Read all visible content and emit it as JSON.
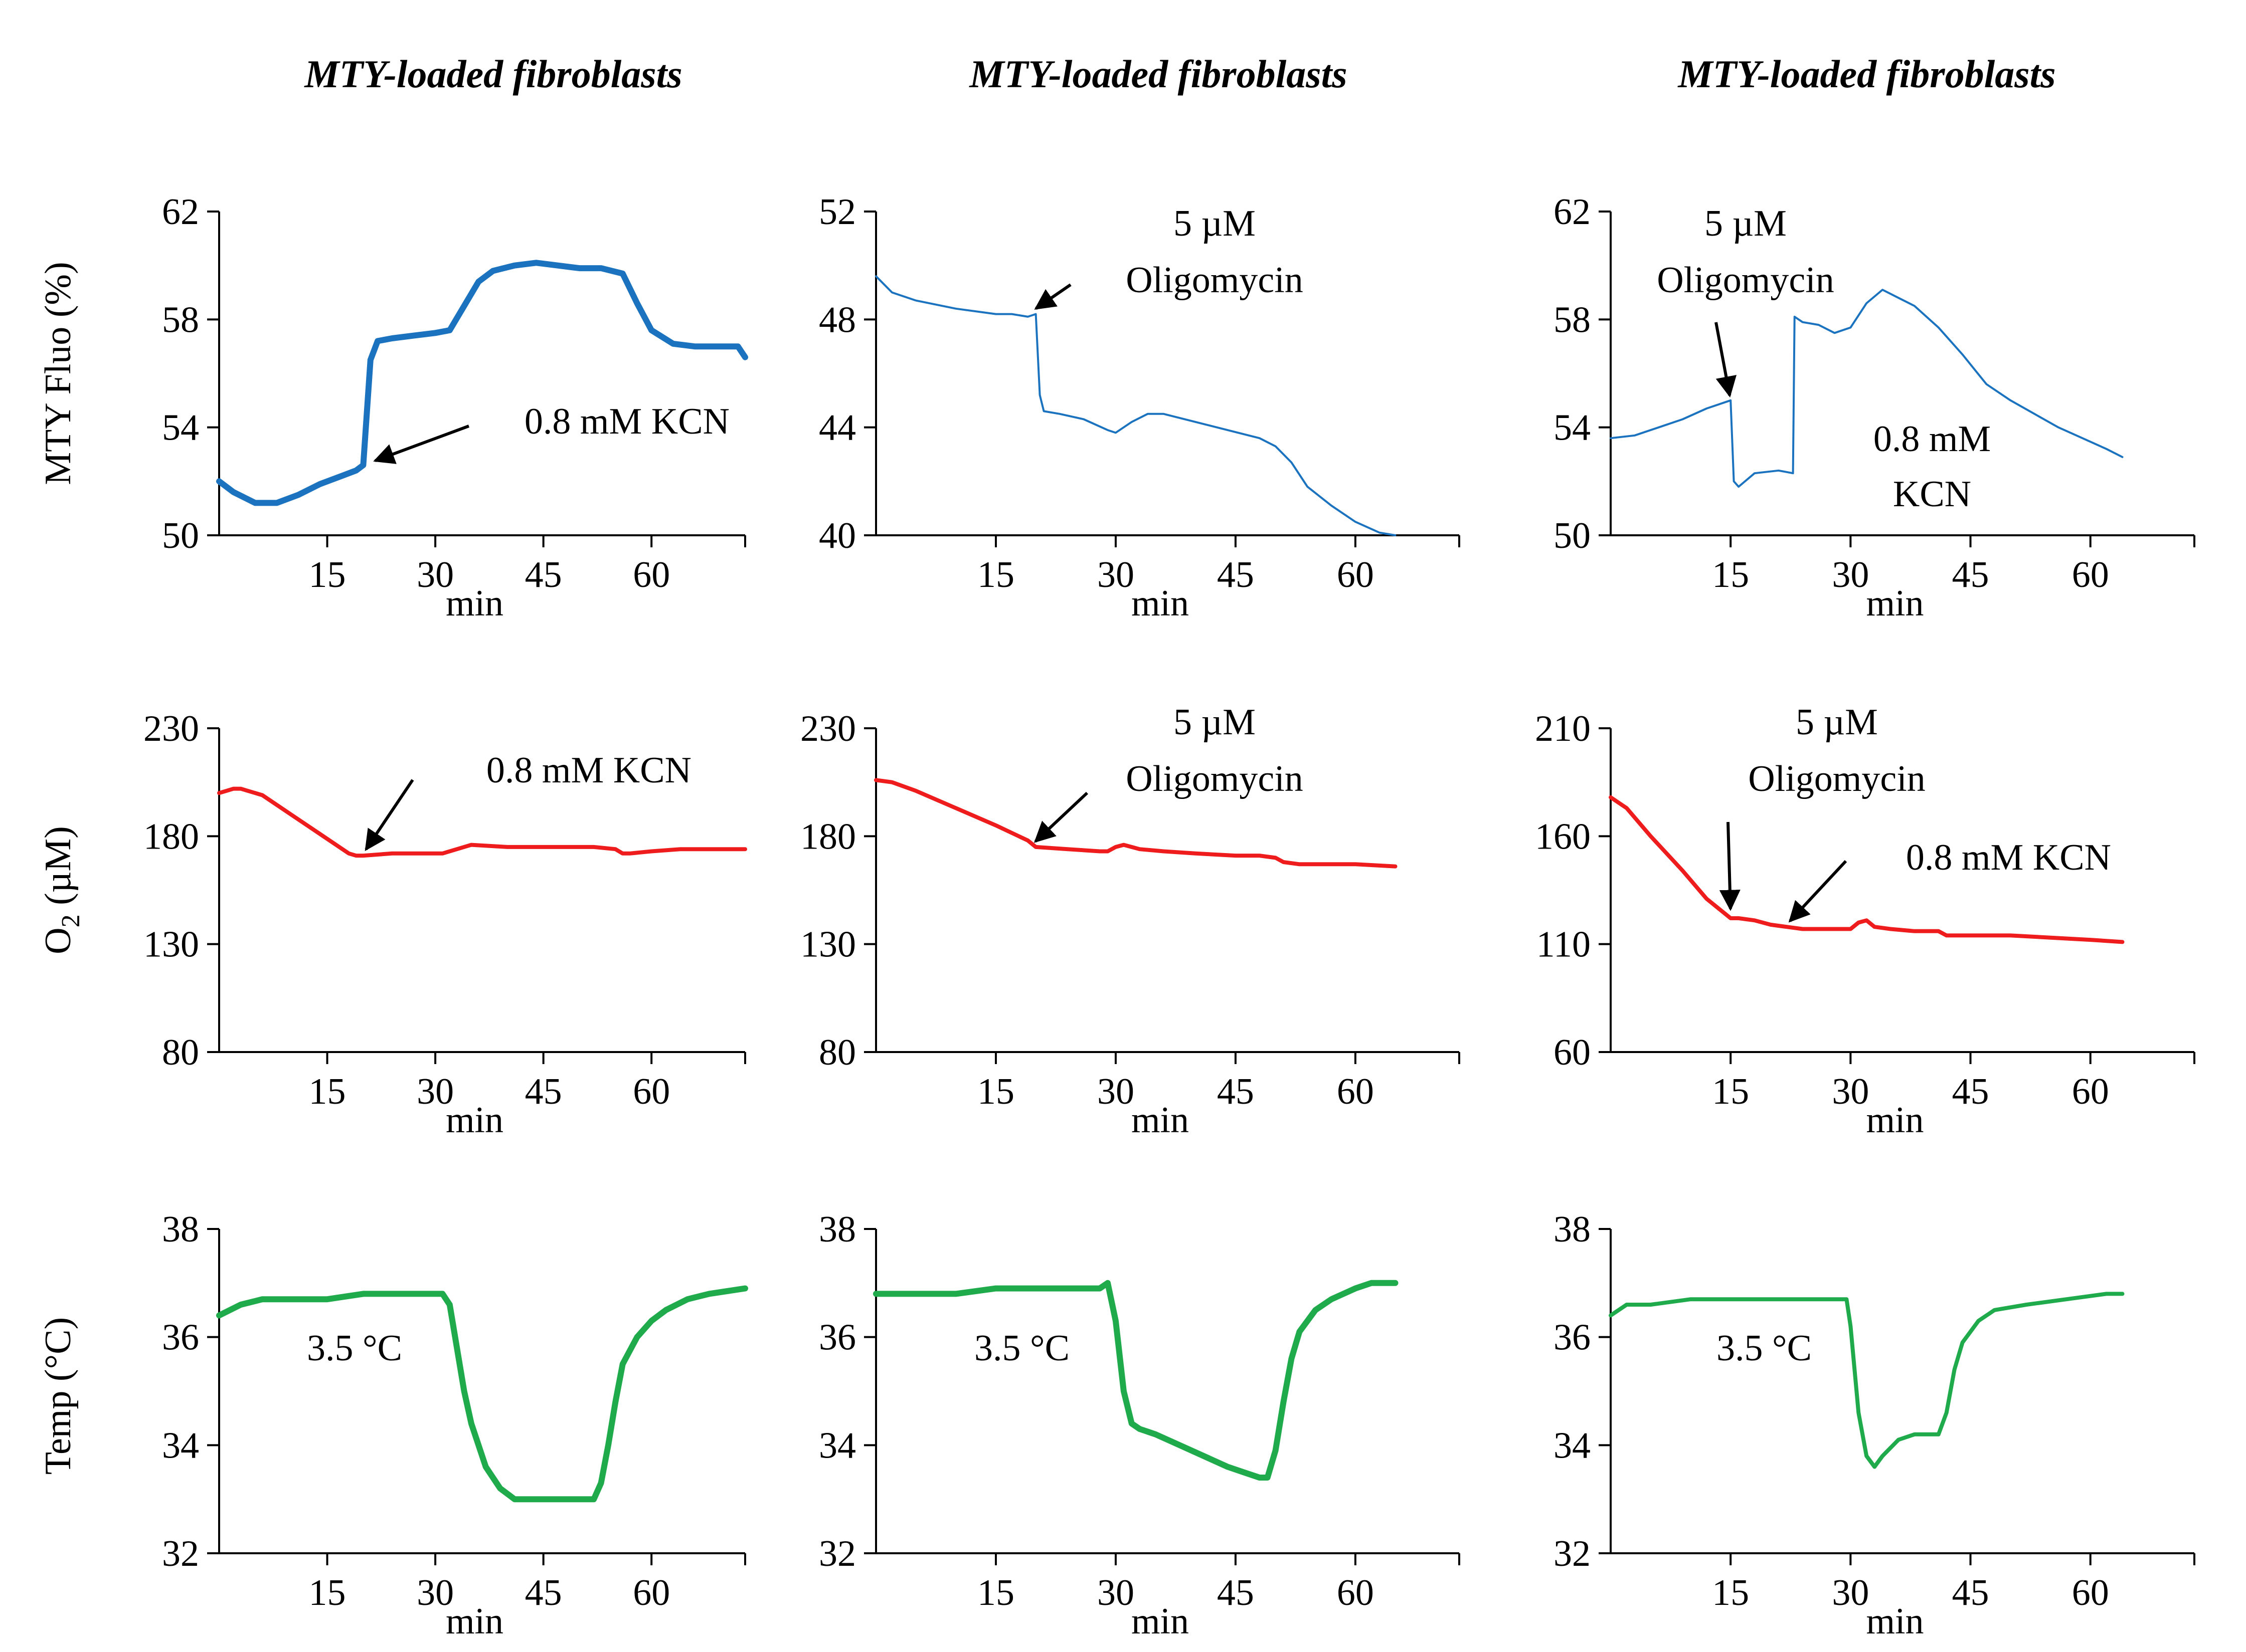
{
  "column_titles": [
    "MTY-loaded fibroblasts",
    "MTY-loaded fibroblasts",
    "MTY-loaded fibroblasts"
  ],
  "row_ylabels": {
    "fluo": "MTY Fluo (%)",
    "o2_prefix": "O",
    "o2_sub": "2",
    "o2_suffix": " (µM)",
    "temp": "Temp (°C)"
  },
  "colors": {
    "fluo": "#1B72BE",
    "o2": "#EE1C1C",
    "temp": "#1FAA4B"
  },
  "chart_data": [
    {
      "id": "c1r1",
      "row": 0,
      "col": 0,
      "type": "line",
      "series_color": "fluo",
      "line_weight": "thick",
      "xlabel": "min",
      "xticks": [
        15,
        30,
        45,
        60
      ],
      "xlim": [
        0,
        73
      ],
      "ylabel": "MTY Fluo (%)",
      "yticks": [
        50,
        54,
        58,
        62
      ],
      "ylim": [
        50,
        62
      ],
      "x": [
        0,
        2,
        5,
        8,
        11,
        14,
        17,
        19,
        20,
        21,
        22,
        24,
        27,
        30,
        32,
        34,
        36,
        38,
        41,
        44,
        47,
        50,
        53,
        56,
        58,
        60,
        63,
        66,
        69,
        72,
        73
      ],
      "y": [
        52.0,
        51.6,
        51.2,
        51.2,
        51.5,
        51.9,
        52.2,
        52.4,
        52.6,
        56.5,
        57.2,
        57.3,
        57.4,
        57.5,
        57.6,
        58.5,
        59.4,
        59.8,
        60.0,
        60.1,
        60.0,
        59.9,
        59.9,
        59.7,
        58.6,
        57.6,
        57.1,
        57.0,
        57.0,
        57.0,
        56.6
      ],
      "annotations": [
        {
          "text": "0.8 mM KCN",
          "points_to": [
            21,
            52.7
          ]
        }
      ]
    },
    {
      "id": "c2r1",
      "row": 0,
      "col": 1,
      "type": "line",
      "series_color": "fluo",
      "line_weight": "thin",
      "xlabel": "min",
      "xticks": [
        15,
        30,
        45,
        60
      ],
      "xlim": [
        0,
        73
      ],
      "yticks": [
        40,
        44,
        48,
        52
      ],
      "ylim": [
        40,
        52
      ],
      "x": [
        0,
        2,
        5,
        10,
        15,
        17,
        19,
        20,
        20.5,
        21,
        23,
        26,
        29,
        30,
        32,
        34,
        36,
        40,
        44,
        48,
        50,
        52,
        54,
        57,
        60,
        63,
        65
      ],
      "y": [
        49.6,
        49.0,
        48.7,
        48.4,
        48.2,
        48.2,
        48.1,
        48.2,
        45.2,
        44.6,
        44.5,
        44.3,
        43.9,
        43.8,
        44.2,
        44.5,
        44.5,
        44.2,
        43.9,
        43.6,
        43.3,
        42.7,
        41.8,
        41.1,
        40.5,
        40.1,
        40.0
      ],
      "annotations": [
        {
          "text": "5 µM",
          "text2": "Oligomycin",
          "points_to": [
            19.5,
            48.3
          ]
        }
      ]
    },
    {
      "id": "c3r1",
      "row": 0,
      "col": 2,
      "type": "line",
      "series_color": "fluo",
      "line_weight": "thin",
      "xlabel": "min",
      "xticks": [
        15,
        30,
        45,
        60
      ],
      "xlim": [
        0,
        73
      ],
      "yticks": [
        50,
        54,
        58,
        62
      ],
      "ylim": [
        50,
        62
      ],
      "x": [
        0,
        3,
        6,
        9,
        12,
        14,
        15,
        15.4,
        16,
        18,
        21,
        22.8,
        23,
        24,
        26,
        28,
        30,
        32,
        34,
        36,
        38,
        41,
        44,
        47,
        50,
        53,
        56,
        59,
        62,
        64
      ],
      "y": [
        53.6,
        53.7,
        54.0,
        54.3,
        54.7,
        54.9,
        55.0,
        52.0,
        51.8,
        52.3,
        52.4,
        52.3,
        58.1,
        57.9,
        57.8,
        57.5,
        57.7,
        58.6,
        59.1,
        58.8,
        58.5,
        57.7,
        56.7,
        55.6,
        55.0,
        54.5,
        54.0,
        53.6,
        53.2,
        52.9
      ],
      "annotations": [
        {
          "text": "5 µM",
          "text2": "Oligomycin",
          "points_to": [
            15,
            55.0
          ]
        },
        {
          "text": "0.8 mM",
          "text2": "KCN"
        }
      ]
    },
    {
      "id": "c1r2",
      "row": 1,
      "col": 0,
      "type": "line",
      "series_color": "o2",
      "line_weight": "medium",
      "xlabel": "min",
      "xticks": [
        15,
        30,
        45,
        60
      ],
      "xlim": [
        0,
        73
      ],
      "ylabel": "O2 (µM)",
      "yticks": [
        80,
        130,
        180,
        230
      ],
      "ylim": [
        80,
        230
      ],
      "x": [
        0,
        1,
        2,
        3,
        4,
        6,
        10,
        14,
        18,
        19,
        20,
        24,
        28,
        31,
        33,
        35,
        40,
        46,
        52,
        55,
        56,
        57,
        60,
        64,
        70,
        73
      ],
      "y": [
        200,
        201,
        202,
        202,
        201,
        199,
        190,
        181,
        172,
        171,
        171,
        172,
        172,
        172,
        174,
        176,
        175,
        175,
        175,
        174,
        172,
        172,
        173,
        174,
        174,
        174
      ],
      "annotations": [
        {
          "text": "0.8 mM KCN",
          "points_to": [
            20,
            172
          ]
        }
      ]
    },
    {
      "id": "c2r2",
      "row": 1,
      "col": 1,
      "type": "line",
      "series_color": "o2",
      "line_weight": "medium",
      "xlabel": "min",
      "xticks": [
        15,
        30,
        45,
        60
      ],
      "xlim": [
        0,
        73
      ],
      "yticks": [
        80,
        130,
        180,
        230
      ],
      "ylim": [
        80,
        230
      ],
      "x": [
        0,
        2,
        5,
        10,
        15,
        19,
        20,
        24,
        28,
        29,
        30,
        31,
        32,
        33,
        36,
        40,
        45,
        48,
        50,
        51,
        53,
        55,
        60,
        65
      ],
      "y": [
        206,
        205,
        201,
        193,
        185,
        178,
        175,
        174,
        173,
        173,
        175,
        176,
        175,
        174,
        173,
        172,
        171,
        171,
        170,
        168,
        167,
        167,
        167,
        166
      ],
      "annotations": [
        {
          "text": "5 µM",
          "text2": "Oligomycin",
          "points_to": [
            19.5,
            176
          ]
        }
      ]
    },
    {
      "id": "c3r2",
      "row": 1,
      "col": 2,
      "type": "line",
      "series_color": "o2",
      "line_weight": "medium",
      "xlabel": "min",
      "xticks": [
        15,
        30,
        45,
        60
      ],
      "xlim": [
        0,
        73
      ],
      "yticks": [
        60,
        110,
        160,
        210
      ],
      "ylim": [
        60,
        210
      ],
      "x": [
        0,
        2,
        5,
        9,
        12,
        15,
        16,
        18,
        20,
        22,
        24,
        26,
        28,
        30,
        31,
        32,
        33,
        35,
        38,
        41,
        42,
        45,
        50,
        55,
        60,
        64
      ],
      "y": [
        178,
        173,
        160,
        144,
        131,
        122,
        122,
        121,
        119,
        118,
        117,
        117,
        117,
        117,
        120,
        121,
        118,
        117,
        116,
        116,
        114,
        114,
        114,
        113,
        112,
        111
      ],
      "annotations": [
        {
          "text": "5 µM",
          "text2": "Oligomycin",
          "points_to": [
            15,
            124
          ]
        },
        {
          "text": "0.8 mM KCN",
          "points_to": [
            22,
            119
          ]
        }
      ]
    },
    {
      "id": "c1r3",
      "row": 2,
      "col": 0,
      "type": "line",
      "series_color": "temp",
      "line_weight": "thick",
      "xlabel": "min",
      "xticks": [
        15,
        30,
        45,
        60
      ],
      "xlim": [
        0,
        73
      ],
      "ylabel": "Temp (°C)",
      "yticks": [
        32,
        34,
        36,
        38
      ],
      "ylim": [
        32,
        38
      ],
      "x": [
        0,
        3,
        6,
        10,
        15,
        20,
        25,
        30,
        31,
        32,
        33,
        34,
        35,
        37,
        39,
        41,
        43,
        45,
        48,
        51,
        52,
        53,
        54,
        55,
        56,
        58,
        60,
        62,
        65,
        68,
        73
      ],
      "y": [
        36.4,
        36.6,
        36.7,
        36.7,
        36.7,
        36.8,
        36.8,
        36.8,
        36.8,
        36.6,
        35.8,
        35.0,
        34.4,
        33.6,
        33.2,
        33.0,
        33.0,
        33.0,
        33.0,
        33.0,
        33.0,
        33.3,
        34.0,
        34.8,
        35.5,
        36.0,
        36.3,
        36.5,
        36.7,
        36.8,
        36.9
      ],
      "annotations": [
        {
          "text": "3.5 °C"
        }
      ]
    },
    {
      "id": "c2r3",
      "row": 2,
      "col": 1,
      "type": "line",
      "series_color": "temp",
      "line_weight": "thick",
      "xlabel": "min",
      "xticks": [
        15,
        30,
        45,
        60
      ],
      "xlim": [
        0,
        73
      ],
      "yticks": [
        32,
        34,
        36,
        38
      ],
      "ylim": [
        32,
        38
      ],
      "x": [
        0,
        5,
        10,
        15,
        20,
        25,
        28,
        29,
        30,
        31,
        32,
        33,
        35,
        38,
        41,
        44,
        46,
        48,
        49,
        50,
        51,
        52,
        53,
        55,
        57,
        60,
        62,
        65
      ],
      "y": [
        36.8,
        36.8,
        36.8,
        36.9,
        36.9,
        36.9,
        36.9,
        37.0,
        36.3,
        35.0,
        34.4,
        34.3,
        34.2,
        34.0,
        33.8,
        33.6,
        33.5,
        33.4,
        33.4,
        33.9,
        34.8,
        35.6,
        36.1,
        36.5,
        36.7,
        36.9,
        37.0,
        37.0
      ],
      "annotations": [
        {
          "text": "3.5 °C"
        }
      ]
    },
    {
      "id": "c3r3",
      "row": 2,
      "col": 2,
      "type": "line",
      "series_color": "temp",
      "line_weight": "medium",
      "xlabel": "min",
      "xticks": [
        15,
        30,
        45,
        60
      ],
      "xlim": [
        0,
        73
      ],
      "yticks": [
        32,
        34,
        36,
        38
      ],
      "ylim": [
        32,
        38
      ],
      "x": [
        0,
        2,
        5,
        10,
        15,
        20,
        25,
        29.5,
        30,
        31,
        32,
        33,
        34,
        36,
        38,
        41,
        42,
        43,
        44,
        46,
        48,
        52,
        57,
        62,
        64
      ],
      "y": [
        36.4,
        36.6,
        36.6,
        36.7,
        36.7,
        36.7,
        36.7,
        36.7,
        36.2,
        34.6,
        33.8,
        33.6,
        33.8,
        34.1,
        34.2,
        34.2,
        34.6,
        35.4,
        35.9,
        36.3,
        36.5,
        36.6,
        36.7,
        36.8,
        36.8
      ],
      "annotations": [
        {
          "text": "3.5 °C"
        }
      ]
    }
  ]
}
